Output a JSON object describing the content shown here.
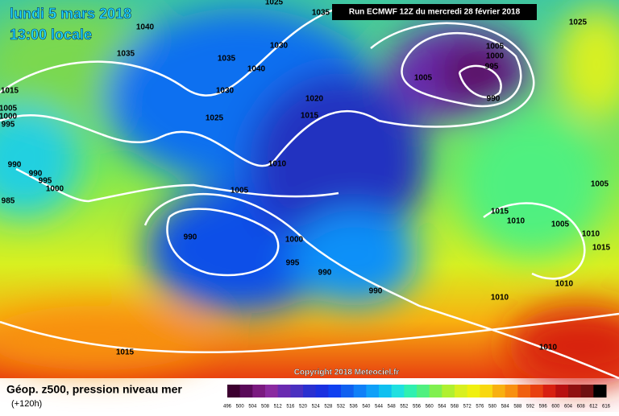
{
  "header": {
    "title_lines": [
      "lundi 5 mars 2018",
      "13:00 locale"
    ],
    "run_info": "Run ECMWF 12Z du mercredi 28 février 2018",
    "copyright": "Copyright 2018 Meteociel.fr"
  },
  "footer": {
    "title": "Géop. z500, pression niveau mer",
    "subtitle": "(+120h)"
  },
  "legend": {
    "labels": [
      "496",
      "500",
      "504",
      "508",
      "512",
      "516",
      "520",
      "524",
      "528",
      "532",
      "536",
      "540",
      "544",
      "548",
      "552",
      "556",
      "560",
      "564",
      "568",
      "572",
      "576",
      "580",
      "584",
      "588",
      "592",
      "596",
      "600",
      "604",
      "608",
      "612",
      "616"
    ],
    "colors": [
      "#3c0030",
      "#5a0a5a",
      "#7a1a80",
      "#8a2aa0",
      "#6a2ab0",
      "#4a30c0",
      "#2a30d0",
      "#1a30e0",
      "#1040f0",
      "#1060f0",
      "#1080f8",
      "#10a0f8",
      "#10c0f0",
      "#20e0e0",
      "#30f0b0",
      "#50f080",
      "#80f050",
      "#b0f030",
      "#d8f020",
      "#f0f010",
      "#f8d810",
      "#f8b010",
      "#f89010",
      "#f06010",
      "#e84010",
      "#d82010",
      "#b81010",
      "#901010",
      "#701010",
      "#000000"
    ]
  },
  "isobars": {
    "labels": [
      "1025",
      "1035",
      "1040",
      "1035",
      "1030",
      "1035",
      "1040",
      "1030",
      "1025",
      "1020",
      "1015",
      "1010",
      "1005",
      "990",
      "1000",
      "995",
      "990",
      "990",
      "1015",
      "1005",
      "1005",
      "1000",
      "995",
      "990",
      "1015",
      "1010",
      "1005",
      "1005",
      "1010",
      "1015",
      "1010",
      "1010",
      "1010",
      "1025",
      "1015",
      "1005",
      "1000",
      "995",
      "985",
      "990",
      "990",
      "995",
      "1000"
    ]
  }
}
